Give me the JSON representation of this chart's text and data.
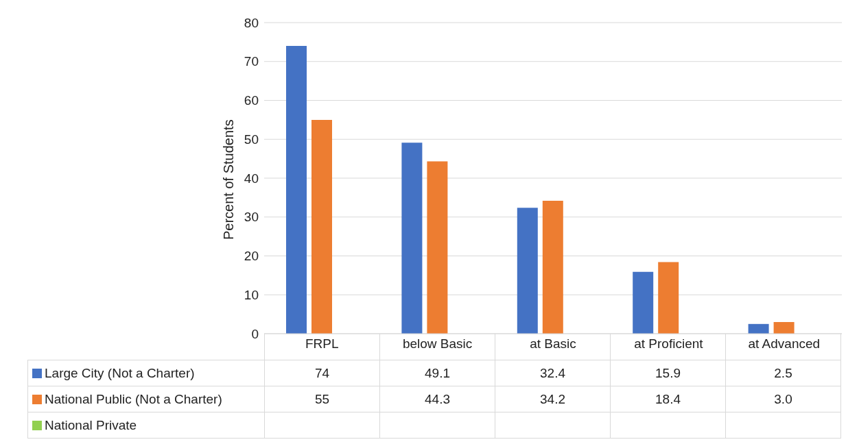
{
  "chart_data": {
    "type": "bar",
    "ylabel": "Percent of Students",
    "categories": [
      "FRPL",
      "below Basic",
      "at Basic",
      "at Proficient",
      "at Advanced"
    ],
    "series": [
      {
        "name": "Large City (Not a Charter)",
        "color": "#4472c4",
        "values": [
          74,
          49.1,
          32.4,
          15.9,
          2.5
        ],
        "value_labels": [
          "74",
          "49.1",
          "32.4",
          "15.9",
          "2.5"
        ]
      },
      {
        "name": "National Public (Not a Charter)",
        "color": "#ed7d31",
        "values": [
          55,
          44.3,
          34.2,
          18.4,
          3.0
        ],
        "value_labels": [
          "55",
          "44.3",
          "34.2",
          "18.4",
          "3.0"
        ]
      },
      {
        "name": "National Private",
        "color": "#92d050",
        "values": [
          null,
          null,
          null,
          null,
          null
        ],
        "value_labels": [
          null,
          null,
          null,
          null,
          null
        ]
      }
    ],
    "ylim": [
      0,
      80
    ],
    "yticks": [
      0,
      10,
      20,
      30,
      40,
      50,
      60,
      70,
      80
    ],
    "grid": "y",
    "legend": "bottom"
  }
}
